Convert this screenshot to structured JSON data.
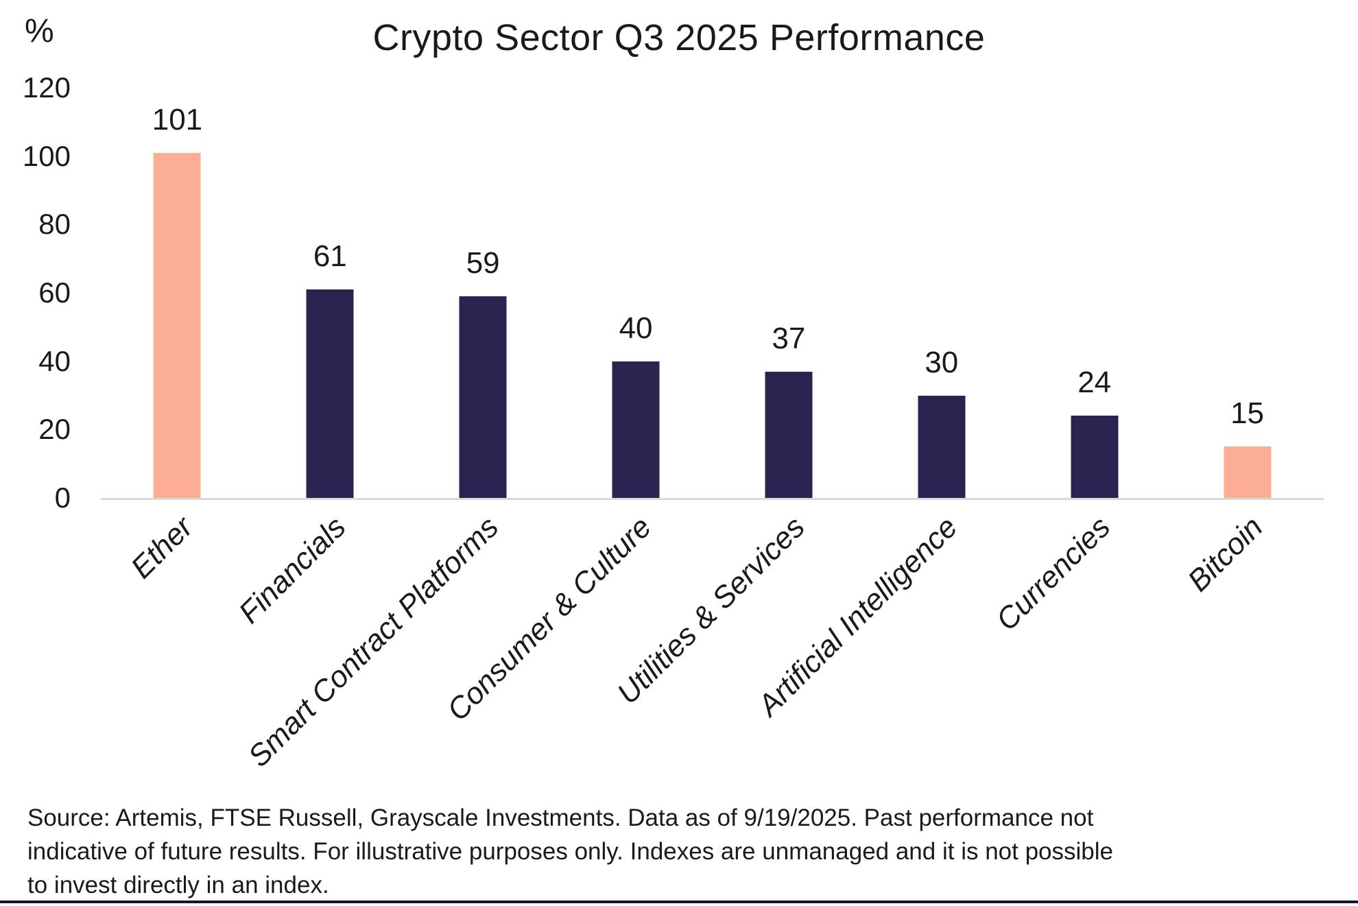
{
  "figure": {
    "title": "Crypto Sector Q3 2025 Performance",
    "y_unit_label": "%"
  },
  "source": {
    "lines": [
      "Source: Artemis, FTSE Russell, Grayscale Investments. Data as of 9/19/2025. Past performance not",
      "indicative of future results. For illustrative purposes only. Indexes are unmanaged and it is not possible",
      "to invest directly in an index."
    ]
  },
  "colors": {
    "bar_highlight": "#FCAE94",
    "bar_default": "#2D2350",
    "axis_line": "#D9D9D9",
    "bottom_rule": "#14142D",
    "text": "#1A1A1A"
  },
  "chart_data": {
    "type": "bar",
    "title": "Crypto Sector Q3 2025 Performance",
    "xlabel": "",
    "ylabel": "%",
    "ylim": [
      0,
      120
    ],
    "yticks": [
      0,
      20,
      40,
      60,
      80,
      100,
      120
    ],
    "grid": false,
    "legend": false,
    "value_labels_shown": true,
    "x_tick_rotation_deg": 45,
    "categories": [
      "Ether",
      "Financials",
      "Smart Contract Platforms",
      "Consumer & Culture",
      "Utilities & Services",
      "Artificial Intelligence",
      "Currencies",
      "Bitcoin"
    ],
    "values": [
      101,
      61,
      59,
      40,
      37,
      30,
      24,
      15
    ],
    "bar_colors": [
      "#FCAE94",
      "#2D2350",
      "#2D2350",
      "#2D2350",
      "#2D2350",
      "#2D2350",
      "#2D2350",
      "#FCAE94"
    ]
  }
}
